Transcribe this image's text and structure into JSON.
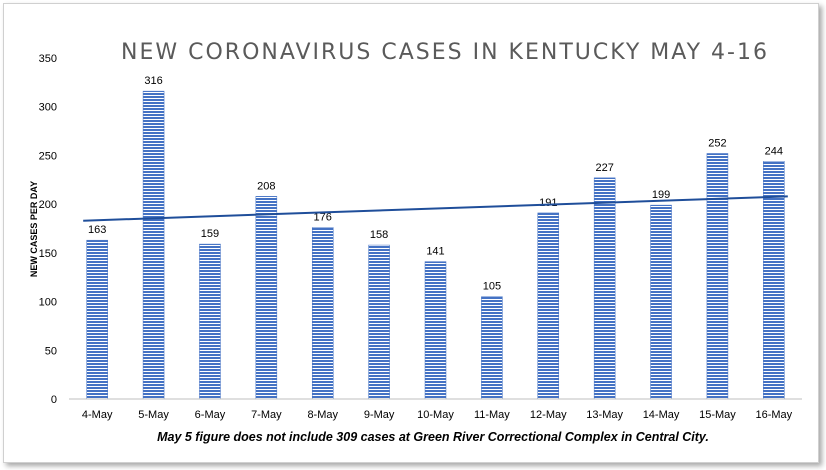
{
  "chart_data": {
    "type": "bar",
    "title": "NEW CORONAVIRUS CASES IN KENTUCKY MAY 4-16",
    "ylabel": "NEW CASES PER DAY",
    "xlabel": "",
    "ylim": [
      0,
      350
    ],
    "ytick_values": [
      0,
      50,
      100,
      150,
      200,
      250,
      300,
      350
    ],
    "ytick_labels": [
      "0",
      "50",
      "100",
      "150",
      "200",
      "250",
      "300",
      "350"
    ],
    "categories": [
      "4-May",
      "5-May",
      "6-May",
      "7-May",
      "8-May",
      "9-May",
      "10-May",
      "11-May",
      "12-May",
      "13-May",
      "14-May",
      "15-May",
      "16-May"
    ],
    "values": [
      163,
      316,
      159,
      208,
      176,
      158,
      141,
      105,
      191,
      227,
      199,
      252,
      244
    ],
    "data_labels": [
      "163",
      "316",
      "159",
      "208",
      "176",
      "158",
      "141",
      "105",
      "191",
      "227",
      "199",
      "252",
      "244"
    ],
    "trendline": {
      "type": "linear",
      "start": 183,
      "end": 208
    },
    "grid": false,
    "legend": "none",
    "footnote": "May 5 figure does not include 309 cases at Green River Correctional Complex in Central City.",
    "colors": {
      "bar": "#4472c4",
      "bar_stripe": "#ffffff",
      "trendline": "#1f4e9a",
      "title": "#5a5a5a"
    }
  }
}
